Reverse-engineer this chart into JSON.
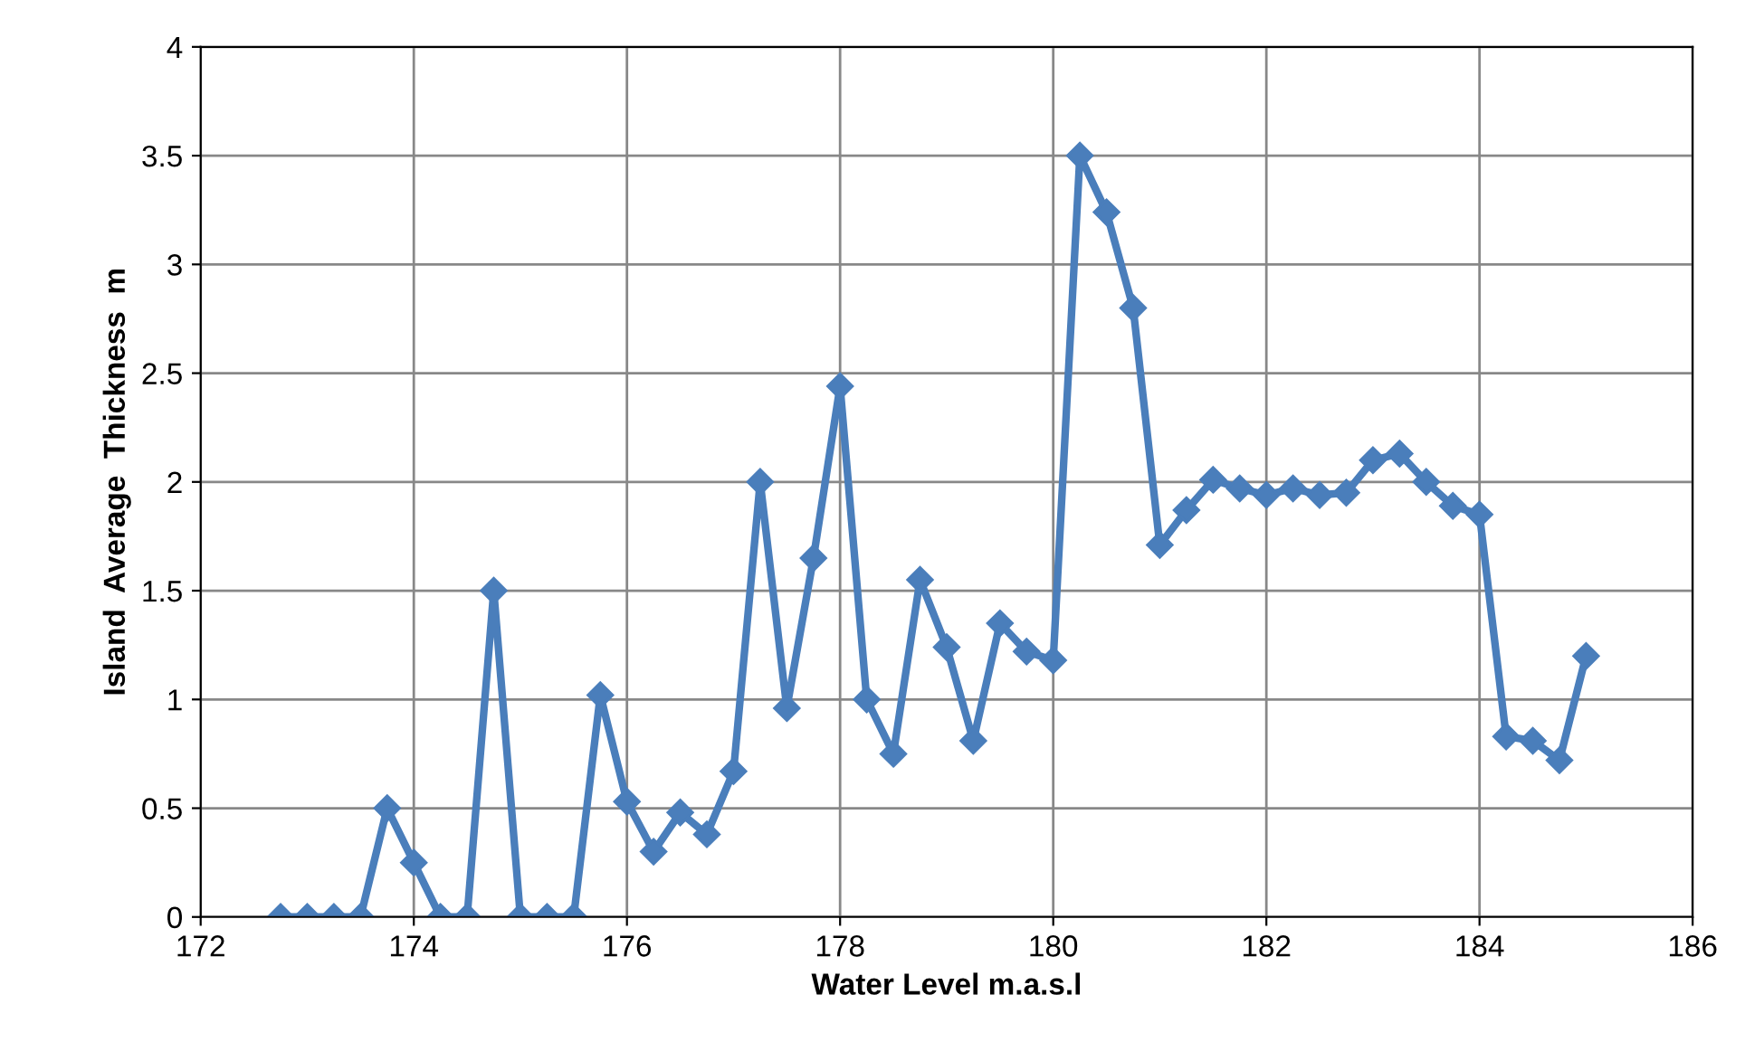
{
  "chart_data": {
    "type": "line",
    "xlabel": "Water Level m.a.s.l",
    "ylabel": "Island  Average  Thickness  m",
    "x": [
      172.75,
      173,
      173.25,
      173.5,
      173.75,
      174,
      174.25,
      174.5,
      174.75,
      175,
      175.25,
      175.5,
      175.75,
      176,
      176.25,
      176.5,
      176.75,
      177,
      177.25,
      177.5,
      177.75,
      178,
      178.25,
      178.5,
      178.75,
      179,
      179.25,
      179.5,
      179.75,
      180,
      180.25,
      180.5,
      180.75,
      181,
      181.25,
      181.5,
      181.75,
      182,
      182.25,
      182.5,
      182.75,
      183,
      183.25,
      183.5,
      183.75,
      184,
      184.25,
      184.5,
      184.75,
      185
    ],
    "series": [
      {
        "color": "#4a7ebb",
        "values": [
          0,
          0,
          0,
          0,
          0.5,
          0.25,
          0,
          0,
          1.5,
          0,
          0,
          0,
          1.02,
          0.53,
          0.3,
          0.48,
          0.38,
          0.67,
          2.0,
          0.96,
          1.65,
          2.44,
          1.0,
          0.75,
          1.55,
          1.24,
          0.81,
          1.35,
          1.22,
          1.18,
          3.5,
          3.24,
          2.8,
          1.71,
          1.87,
          2.01,
          1.97,
          1.94,
          1.97,
          1.94,
          1.95,
          2.1,
          2.13,
          2.0,
          1.89,
          1.85,
          0.83,
          0.81,
          0.72,
          1.2
        ]
      }
    ],
    "xlim": [
      172,
      186
    ],
    "xticks": [
      172,
      174,
      176,
      178,
      180,
      182,
      184,
      186
    ],
    "ylim": [
      0,
      4
    ],
    "yticks": [
      0,
      0.5,
      1,
      1.5,
      2,
      2.5,
      3,
      3.5,
      4
    ],
    "grid": true,
    "marker": "diamond",
    "line_style": "solid",
    "legend": false
  }
}
